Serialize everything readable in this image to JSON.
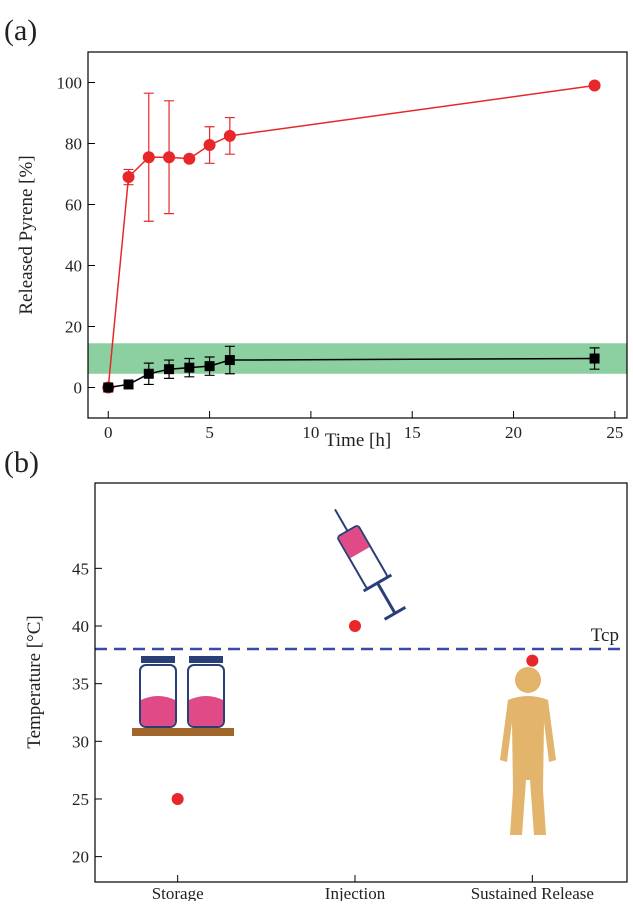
{
  "chart_data": [
    {
      "type": "line",
      "label": "(a)",
      "x_label": "Time [h]",
      "y_label": "Released Pyrene [%]",
      "x": [
        0,
        1,
        2,
        3,
        4,
        5,
        6,
        24
      ],
      "series": [
        {
          "color": "#e8272a",
          "marker": "circle",
          "values": [
            0,
            69,
            75.5,
            75.5,
            75,
            79.5,
            82.5,
            99
          ],
          "errors": [
            0,
            2.5,
            21,
            18.5,
            1,
            6,
            6,
            0
          ]
        },
        {
          "color": "#000000",
          "marker": "square",
          "values": [
            0,
            1,
            4.5,
            6,
            6.5,
            7,
            9,
            9.5
          ],
          "errors": [
            0,
            0.5,
            3.5,
            3,
            3,
            3,
            4.5,
            3.5
          ]
        }
      ],
      "band": [
        4.5,
        14.5
      ],
      "band_color": "#8ccfa0",
      "xlim": [
        -1,
        25.6
      ],
      "xticks": [
        0,
        5,
        10,
        15,
        20,
        25
      ],
      "ylim": [
        -10,
        110
      ],
      "yticks": [
        0,
        20,
        40,
        60,
        80,
        100
      ]
    },
    {
      "type": "scatter",
      "label": "(b)",
      "y_label": "Temperature [°C]",
      "categories": [
        "Storage",
        "Injection",
        "Sustained Release"
      ],
      "values": [
        25,
        40,
        37
      ],
      "color": "#e8272a",
      "reference_line": {
        "value": 38,
        "label": "Tcp",
        "color": "#3a4aa8"
      },
      "ylim": [
        17.8,
        52.4
      ],
      "yticks": [
        20,
        25,
        30,
        35,
        40,
        45
      ]
    }
  ]
}
